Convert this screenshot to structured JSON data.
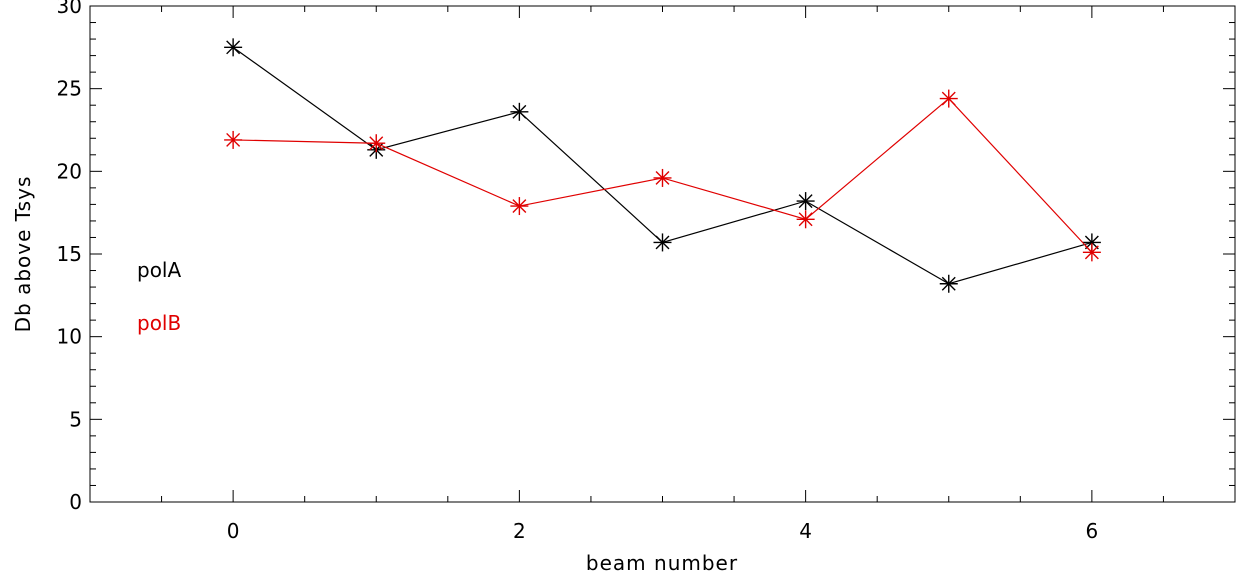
{
  "chart_data": {
    "type": "line",
    "xlabel": "beam number",
    "ylabel": "Db above Tsys",
    "xlim": [
      -1,
      7
    ],
    "ylim": [
      0,
      30
    ],
    "xticks": [
      0,
      2,
      4,
      6
    ],
    "yticks": [
      0,
      5,
      10,
      15,
      20,
      25,
      30
    ],
    "x": [
      0,
      1,
      2,
      3,
      4,
      5,
      6
    ],
    "series": [
      {
        "name": "polA",
        "color": "#000000",
        "values": [
          27.5,
          21.3,
          23.6,
          15.7,
          18.2,
          13.2,
          15.7
        ]
      },
      {
        "name": "polB",
        "color": "#e00000",
        "values": [
          21.9,
          21.7,
          17.9,
          19.6,
          17.1,
          24.4,
          15.1
        ]
      }
    ],
    "marker": "asterisk",
    "legend_position": "left"
  }
}
